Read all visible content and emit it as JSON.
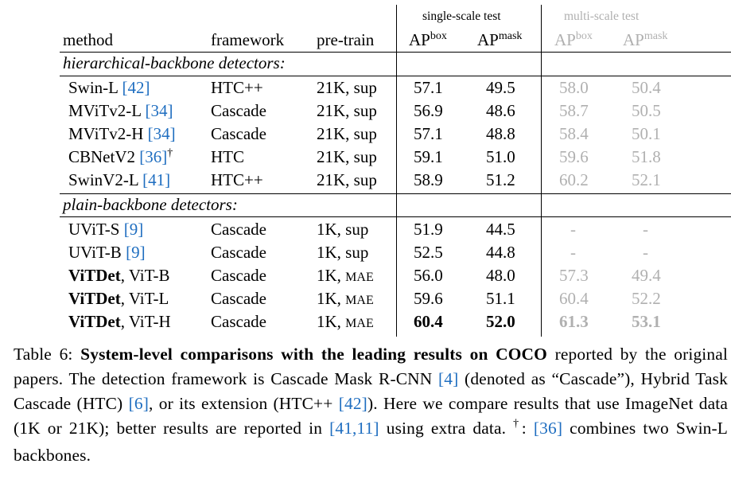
{
  "headers": {
    "method": "method",
    "framework": "framework",
    "pretrain": "pre-train",
    "single_scale": "single-scale test",
    "multi_scale": "multi-scale test",
    "ap": "AP",
    "box": "box",
    "mask": "mask"
  },
  "sections": {
    "hier": "hierarchical-backbone detectors:",
    "plain": "plain-backbone detectors:"
  },
  "rows": [
    {
      "method": "Swin-L",
      "ref": "42",
      "dagger": "",
      "bold_method": "",
      "framework": "HTC++",
      "pretrain_main": "21K, sup",
      "pretrain_small": "",
      "ss_box": "57.1",
      "ss_mask": "49.5",
      "ms_box": "58.0",
      "ms_mask": "50.4"
    },
    {
      "method": "MViTv2-L",
      "ref": "34",
      "dagger": "",
      "bold_method": "",
      "framework": "Cascade",
      "pretrain_main": "21K, sup",
      "pretrain_small": "",
      "ss_box": "56.9",
      "ss_mask": "48.6",
      "ms_box": "58.7",
      "ms_mask": "50.5"
    },
    {
      "method": "MViTv2-H",
      "ref": "34",
      "dagger": "",
      "bold_method": "",
      "framework": "Cascade",
      "pretrain_main": "21K, sup",
      "pretrain_small": "",
      "ss_box": "57.1",
      "ss_mask": "48.8",
      "ms_box": "58.4",
      "ms_mask": "50.1"
    },
    {
      "method": "CBNetV2",
      "ref": "36",
      "dagger": "†",
      "bold_method": "",
      "framework": "HTC",
      "pretrain_main": "21K, sup",
      "pretrain_small": "",
      "ss_box": "59.1",
      "ss_mask": "51.0",
      "ms_box": "59.6",
      "ms_mask": "51.8"
    },
    {
      "method": "SwinV2-L",
      "ref": "41",
      "dagger": "",
      "bold_method": "",
      "framework": "HTC++",
      "pretrain_main": "21K, sup",
      "pretrain_small": "",
      "ss_box": "58.9",
      "ss_mask": "51.2",
      "ms_box": "60.2",
      "ms_mask": "52.1"
    },
    {
      "method": "UViT-S",
      "ref": "9",
      "dagger": "",
      "bold_method": "",
      "framework": "Cascade",
      "pretrain_main": "1K, sup",
      "pretrain_small": "",
      "ss_box": "51.9",
      "ss_mask": "44.5",
      "ms_box": "-",
      "ms_mask": "-"
    },
    {
      "method": "UViT-B",
      "ref": "9",
      "dagger": "",
      "bold_method": "",
      "framework": "Cascade",
      "pretrain_main": "1K, sup",
      "pretrain_small": "",
      "ss_box": "52.5",
      "ss_mask": "44.8",
      "ms_box": "-",
      "ms_mask": "-"
    },
    {
      "method": ", ViT-B",
      "ref": "",
      "dagger": "",
      "bold_method": "ViTDet",
      "framework": "Cascade",
      "pretrain_main": "1K, ",
      "pretrain_small": "MAE",
      "ss_box": "56.0",
      "ss_mask": "48.0",
      "ms_box": "57.3",
      "ms_mask": "49.4"
    },
    {
      "method": ", ViT-L",
      "ref": "",
      "dagger": "",
      "bold_method": "ViTDet",
      "framework": "Cascade",
      "pretrain_main": "1K, ",
      "pretrain_small": "MAE",
      "ss_box": "59.6",
      "ss_mask": "51.1",
      "ms_box": "60.4",
      "ms_mask": "52.2"
    },
    {
      "method": ", ViT-H",
      "ref": "",
      "dagger": "",
      "bold_method": "ViTDet",
      "framework": "Cascade",
      "pretrain_main": "1K, ",
      "pretrain_small": "MAE",
      "ss_box": "60.4",
      "ss_mask": "52.0",
      "ms_box": "61.3",
      "ms_mask": "53.1"
    }
  ],
  "caption": {
    "label": "Table 6: ",
    "title": "System-level comparisons with the leading results on COCO",
    "p1": " reported by the original papers. The detection framework is Cascade Mask R-CNN ",
    "r4": "[4]",
    "p2": " (denoted as “Cascade”), Hybrid Task Cascade (HTC) ",
    "r6": "[6]",
    "p3": ", or its extension (HTC++ ",
    "r42": "[42]",
    "p4": "). Here we compare results that use ImageNet data (1K or 21K); better results are reported in ",
    "r41": "[41,11]",
    "p5": " using extra data. ",
    "dagger": "†",
    "p6": ": ",
    "r36": "[36]",
    "p7": " combines two Swin-L backbones."
  },
  "colors": {
    "link": "#1f6ec0",
    "muted": "#b0b0b0"
  }
}
